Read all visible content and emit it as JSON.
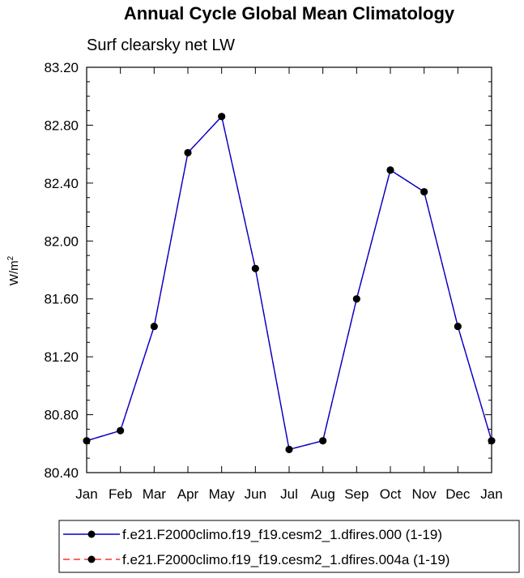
{
  "chart_data": {
    "type": "line",
    "title": "Annual Cycle Global Mean Climatology",
    "subtitle": "Surf clearsky net LW",
    "ylabel": "W/m",
    "ylabel_superscript": "2",
    "ylim": [
      80.4,
      83.2
    ],
    "y_ticks": [
      "80.40",
      "80.80",
      "81.20",
      "81.60",
      "82.00",
      "82.40",
      "82.80",
      "83.20"
    ],
    "categories": [
      "Jan",
      "Feb",
      "Mar",
      "Apr",
      "May",
      "Jun",
      "Jul",
      "Aug",
      "Sep",
      "Oct",
      "Nov",
      "Dec",
      "Jan"
    ],
    "series": [
      {
        "name": "f.e21.F2000climo.f19_f19.cesm2_1.dfires.000 (1-19)",
        "color": "#0000cc",
        "dash": "solid",
        "values": [
          80.62,
          80.69,
          81.41,
          82.61,
          82.86,
          81.81,
          80.56,
          80.62,
          81.6,
          82.49,
          82.34,
          81.41,
          80.62
        ]
      },
      {
        "name": "f.e21.F2000climo.f19_f19.cesm2_1.dfires.004a (1-19)",
        "color": "#ff3333",
        "dash": "dashed",
        "values": [
          80.62,
          80.69,
          81.41,
          82.61,
          82.86,
          81.81,
          80.56,
          80.62,
          81.6,
          82.49,
          82.34,
          81.41,
          80.62
        ]
      }
    ],
    "marker": "filled-circle",
    "marker_color": "#000000",
    "legend_position": "bottom"
  }
}
